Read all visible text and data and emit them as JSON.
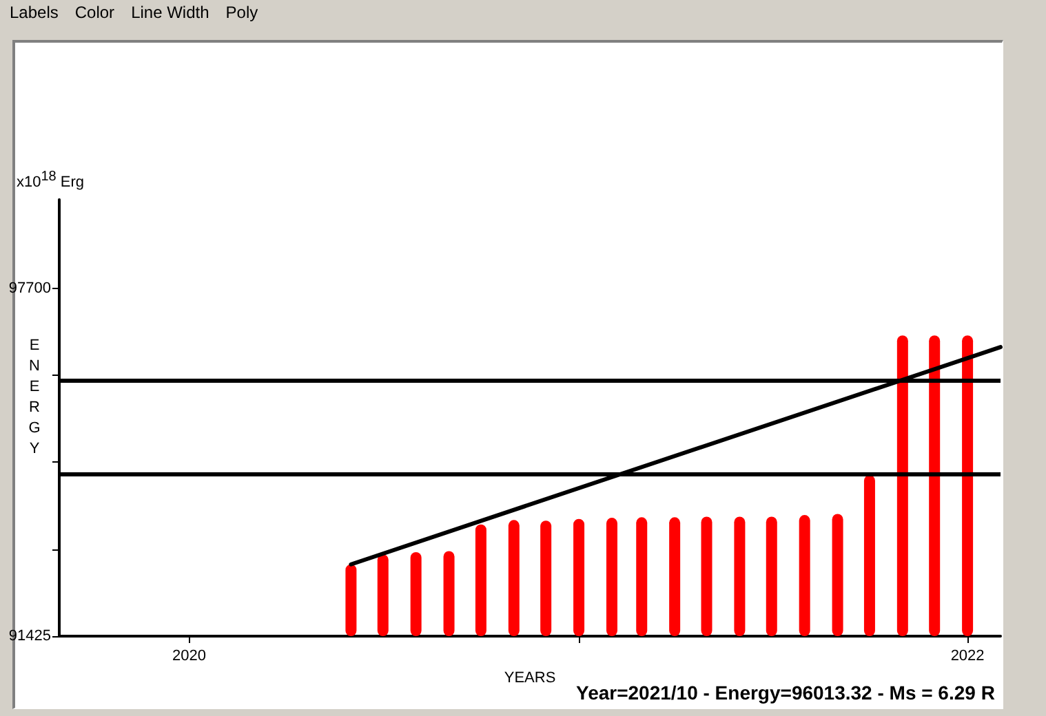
{
  "chart_data": {
    "type": "bar",
    "xlabel": "YEARS",
    "ylabel": "ENERGY",
    "x": [
      "2020-06",
      "2020-07",
      "2020-08",
      "2020-09",
      "2020-10",
      "2020-11",
      "2020-12",
      "2021-01",
      "2021-02",
      "2021-03",
      "2021-04",
      "2021-05",
      "2021-06",
      "2021-07",
      "2021-08",
      "2021-09",
      "2021-10",
      "2021-11",
      "2021-12",
      "2022-01"
    ],
    "series": [
      {
        "color": "#ff0000",
        "values": [
          92720,
          92900,
          92940,
          92960,
          93440,
          93520,
          93510,
          93540,
          93560,
          93570,
          93570,
          93580,
          93580,
          93580,
          93610,
          93630,
          94330,
          96850,
          96850,
          96850
        ]
      },
      {
        "type": "line",
        "color": "#000000",
        "x": [
          "2020-06",
          "2022-02"
        ],
        "values": [
          92720,
          96640
        ]
      }
    ],
    "xlim": [
      "2019-09",
      "2022-02"
    ],
    "xticks": [
      "2020",
      {
        "value": "2021",
        "label": null
      },
      "2022"
    ],
    "ylim": [
      91425,
      99300
    ],
    "yticks": [
      91425,
      {
        "value": 92993.75,
        "label": null
      },
      {
        "value": 94562.5,
        "label": null
      },
      {
        "value": 96131.25,
        "label": null
      },
      97700
    ],
    "ref_lines": [
      {
        "axis": "y",
        "value": 96040,
        "color": "#000000"
      },
      {
        "axis": "y",
        "value": 94350,
        "color": "#000000"
      }
    ],
    "annotations": [
      "x10$^{18}$ Erg",
      "Year=2021/10 - Energy=96013.32 - Ms = 6.29 R",
      "Labels",
      "Color",
      "Line Width",
      "Poly"
    ],
    "grid": false,
    "marker": "none",
    "line_style": "solid"
  }
}
